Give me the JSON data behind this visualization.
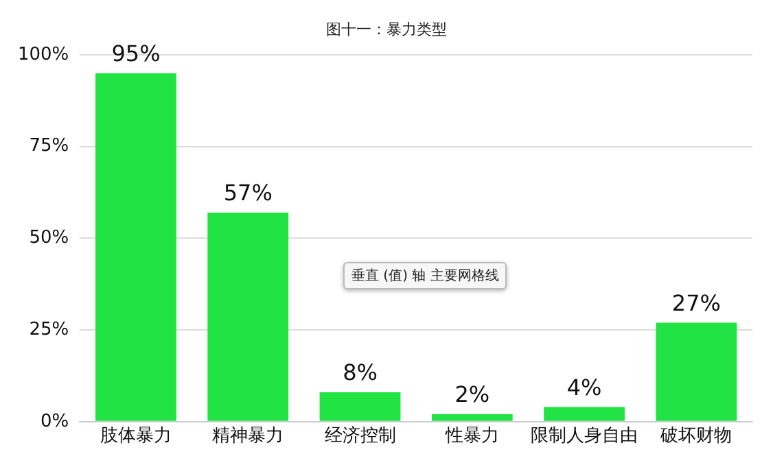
{
  "chart_data": {
    "type": "bar",
    "title": "图十一：暴力类型",
    "categories": [
      "肢体暴力",
      "精神暴力",
      "经济控制",
      "性暴力",
      "限制人身自由",
      "破坏财物"
    ],
    "values": [
      95,
      57,
      8,
      2,
      4,
      27
    ],
    "value_labels": [
      "95%",
      "57%",
      "8%",
      "2%",
      "4%",
      "27%"
    ],
    "color": "#22e344",
    "ylim": [
      0,
      100
    ],
    "yticks": [
      {
        "value": 0,
        "label": "0%"
      },
      {
        "value": 25,
        "label": "25%"
      },
      {
        "value": 50,
        "label": "50%"
      },
      {
        "value": 75,
        "label": "75%"
      },
      {
        "value": 100,
        "label": "100%"
      }
    ],
    "grid": "y",
    "legend": false,
    "annotations": [
      "垂直 (值) 轴 主要网格线"
    ]
  }
}
